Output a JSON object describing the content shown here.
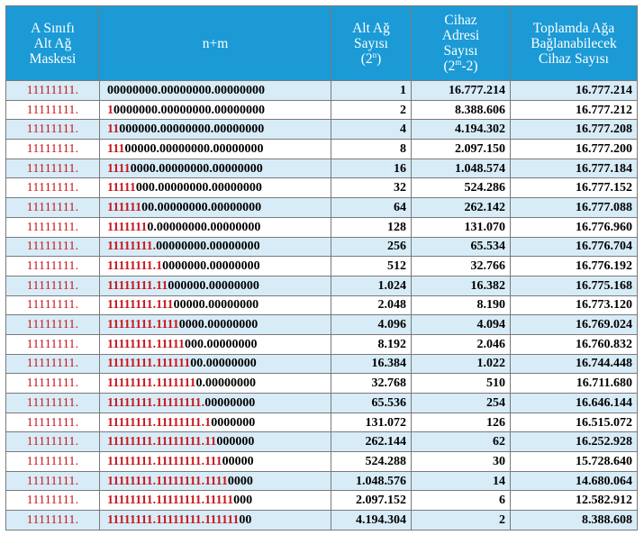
{
  "header": {
    "col1": [
      "A Sınıfı",
      "Alt Ağ",
      "Maskesi"
    ],
    "col2": "n+m",
    "col3": {
      "line1": "Alt Ağ",
      "line2": "Sayısı",
      "formula_base": "(2",
      "formula_exp": "n",
      "formula_end": ")"
    },
    "col4": {
      "line1": "Cihaz",
      "line2": "Adresi",
      "line3": "Sayısı",
      "formula_base": "(2",
      "formula_exp": "m",
      "formula_end": "-2)"
    },
    "col5": [
      "Toplamda Ağa",
      "Bağlanabilecek",
      "Cihaz Sayısı"
    ]
  },
  "colors": {
    "header_bg": "#1b9ad6",
    "header_text": "#ffffff",
    "row_alt_bg": "#d7ecf7",
    "network_bits": "#c8161d",
    "border": "#7a7a7a"
  },
  "rows": [
    {
      "mask": "11111111.",
      "net_bits": "",
      "host_bits": "00000000.00000000.00000000",
      "subnets": "1",
      "hosts": "16.777.214",
      "total": "16.777.214"
    },
    {
      "mask": "11111111.",
      "net_bits": "1",
      "host_bits": "0000000.00000000.00000000",
      "subnets": "2",
      "hosts": "8.388.606",
      "total": "16.777.212"
    },
    {
      "mask": "11111111.",
      "net_bits": "11",
      "host_bits": "000000.00000000.00000000",
      "subnets": "4",
      "hosts": "4.194.302",
      "total": "16.777.208"
    },
    {
      "mask": "11111111.",
      "net_bits": "111",
      "host_bits": "00000.00000000.00000000",
      "subnets": "8",
      "hosts": "2.097.150",
      "total": "16.777.200"
    },
    {
      "mask": "11111111.",
      "net_bits": "1111",
      "host_bits": "0000.00000000.00000000",
      "subnets": "16",
      "hosts": "1.048.574",
      "total": "16.777.184"
    },
    {
      "mask": "11111111.",
      "net_bits": "11111",
      "host_bits": "000.00000000.00000000",
      "subnets": "32",
      "hosts": "524.286",
      "total": "16.777.152"
    },
    {
      "mask": "11111111.",
      "net_bits": "111111",
      "host_bits": "00.00000000.00000000",
      "subnets": "64",
      "hosts": "262.142",
      "total": "16.777.088"
    },
    {
      "mask": "11111111.",
      "net_bits": "1111111",
      "host_bits": "0.00000000.00000000",
      "subnets": "128",
      "hosts": "131.070",
      "total": "16.776.960"
    },
    {
      "mask": "11111111.",
      "net_bits": "11111111.",
      "host_bits": "00000000.00000000",
      "subnets": "256",
      "hosts": "65.534",
      "total": "16.776.704"
    },
    {
      "mask": "11111111.",
      "net_bits": "11111111.1",
      "host_bits": "0000000.00000000",
      "subnets": "512",
      "hosts": "32.766",
      "total": "16.776.192"
    },
    {
      "mask": "11111111.",
      "net_bits": "11111111.11",
      "host_bits": "000000.00000000",
      "subnets": "1.024",
      "hosts": "16.382",
      "total": "16.775.168"
    },
    {
      "mask": "11111111.",
      "net_bits": "11111111.111",
      "host_bits": "00000.00000000",
      "subnets": "2.048",
      "hosts": "8.190",
      "total": "16.773.120"
    },
    {
      "mask": "11111111.",
      "net_bits": "11111111.1111",
      "host_bits": "0000.00000000",
      "subnets": "4.096",
      "hosts": "4.094",
      "total": "16.769.024"
    },
    {
      "mask": "11111111.",
      "net_bits": "11111111.11111",
      "host_bits": "000.00000000",
      "subnets": "8.192",
      "hosts": "2.046",
      "total": "16.760.832"
    },
    {
      "mask": "11111111.",
      "net_bits": "11111111.111111",
      "host_bits": "00.00000000",
      "subnets": "16.384",
      "hosts": "1.022",
      "total": "16.744.448"
    },
    {
      "mask": "11111111.",
      "net_bits": "11111111.1111111",
      "host_bits": "0.00000000",
      "subnets": "32.768",
      "hosts": "510",
      "total": "16.711.680"
    },
    {
      "mask": "11111111.",
      "net_bits": "11111111.11111111.",
      "host_bits": "00000000",
      "subnets": "65.536",
      "hosts": "254",
      "total": "16.646.144"
    },
    {
      "mask": "11111111.",
      "net_bits": "11111111.11111111.1",
      "host_bits": "0000000",
      "subnets": "131.072",
      "hosts": "126",
      "total": "16.515.072"
    },
    {
      "mask": "11111111.",
      "net_bits": "11111111.11111111.11",
      "host_bits": "000000",
      "subnets": "262.144",
      "hosts": "62",
      "total": "16.252.928"
    },
    {
      "mask": "11111111.",
      "net_bits": "11111111.11111111.111",
      "host_bits": "00000",
      "subnets": "524.288",
      "hosts": "30",
      "total": "15.728.640"
    },
    {
      "mask": "11111111.",
      "net_bits": "11111111.11111111.1111",
      "host_bits": "0000",
      "subnets": "1.048.576",
      "hosts": "14",
      "total": "14.680.064"
    },
    {
      "mask": "11111111.",
      "net_bits": "11111111.11111111.11111",
      "host_bits": "000",
      "subnets": "2.097.152",
      "hosts": "6",
      "total": "12.582.912"
    },
    {
      "mask": "11111111.",
      "net_bits": "11111111.11111111.111111",
      "host_bits": "00",
      "subnets": "4.194.304",
      "hosts": "2",
      "total": "8.388.608"
    }
  ]
}
